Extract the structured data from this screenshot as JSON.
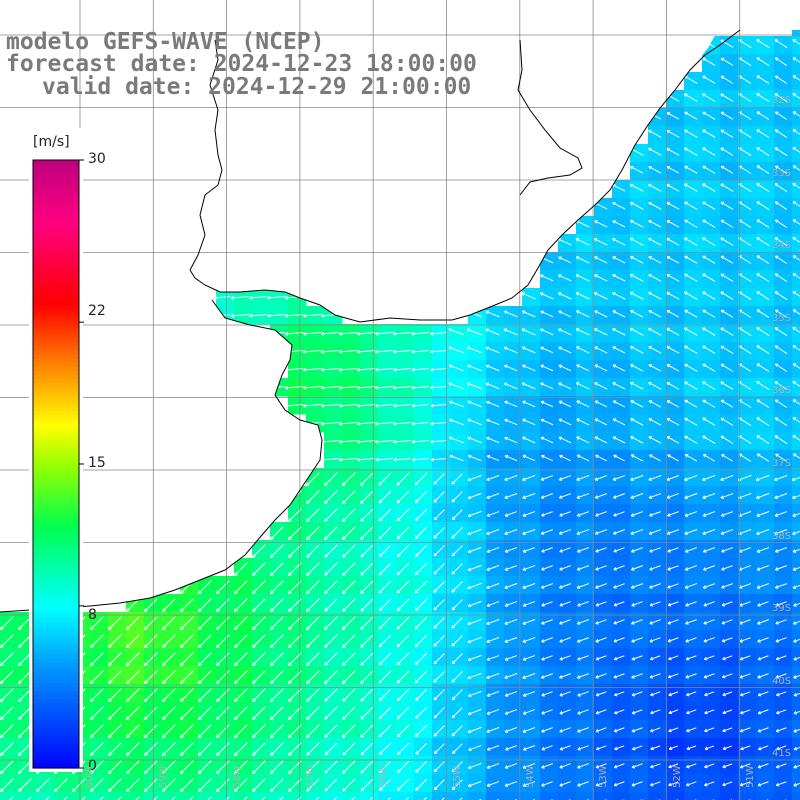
{
  "title": {
    "line1": "modelo GEFS-WAVE (NCEP)",
    "line2": "forecast date: 2024-12-23 18:00:00",
    "line3": "valid date: 2024-12-29 21:00:00"
  },
  "colorbar": {
    "unit": "[m/s]",
    "ticks": [
      "30",
      "22",
      "15",
      "8",
      "0"
    ],
    "tick_values": [
      30,
      22,
      15,
      8,
      0
    ],
    "min": 0,
    "max": 30,
    "colors": [
      "#0000ff",
      "#00aaff",
      "#00ffff",
      "#00ff00",
      "#7fff00",
      "#ffff00",
      "#ff7f00",
      "#ff0000",
      "#ff0080",
      "#c00080"
    ]
  },
  "map": {
    "ocean_base_color": "#00aaff",
    "land_color": "#ffffff",
    "coast_color": "#000000",
    "grid_color": "#999999",
    "lat_labels": [
      "32S",
      "33S",
      "34S",
      "35S",
      "36S",
      "37S",
      "38S",
      "39S",
      "40S",
      "41S"
    ],
    "lon_labels": [
      "60W",
      "59W",
      "58W",
      "57W",
      "56W",
      "55W",
      "54W",
      "53W",
      "52W",
      "51W"
    ],
    "wind_direction": "arrows pointing southwest near coast, west to northwest offshore"
  }
}
